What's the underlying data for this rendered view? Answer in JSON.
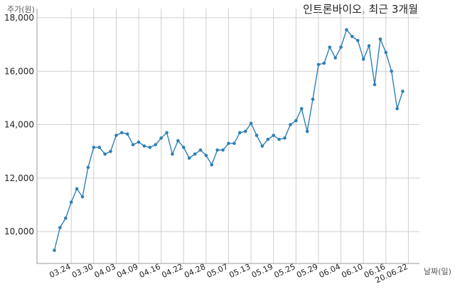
{
  "chart_data": {
    "type": "line",
    "title": "인트론바이오, 최근 3개월",
    "ylabel": "주가(원)",
    "xlabel": "날짜(일)",
    "ylim": [
      8900,
      18000
    ],
    "yticks": [
      10000,
      12000,
      14000,
      16000,
      18000
    ],
    "ytick_labels": [
      "10,000",
      "12,000",
      "14,000",
      "16,000",
      "18,000"
    ],
    "grid": true,
    "x_tick_labels": [
      "03.24",
      "03.30",
      "04.03",
      "04.09",
      "04.16",
      "04.22",
      "04.28",
      "05.07",
      "05.13",
      "05.19",
      "05.25",
      "05.29",
      "06.04",
      "06.10",
      "06.16",
      "20.06.22"
    ],
    "x_tick_index": [
      3,
      7,
      11,
      15,
      19,
      23,
      27,
      31,
      35,
      39,
      43,
      47,
      51,
      55,
      59,
      63
    ],
    "series": [
      {
        "values": [
          9300,
          10150,
          10500,
          11100,
          11600,
          11300,
          12400,
          13150,
          13150,
          12900,
          13000,
          13600,
          13700,
          13650,
          13250,
          13350,
          13200,
          13150,
          13250,
          13500,
          13700,
          12900,
          13400,
          13150,
          12750,
          12900,
          13050,
          12850,
          12500,
          13050,
          13050,
          13300,
          13300,
          13700,
          13750,
          14050,
          13600,
          13200,
          13450,
          13600,
          13450,
          13500,
          14000,
          14150,
          14600,
          13750,
          14950,
          16250,
          16300,
          16900,
          16500,
          16900,
          17550,
          17300,
          17150,
          16450,
          16950,
          15500,
          17200,
          16700,
          16000,
          14600,
          15250
        ]
      }
    ]
  }
}
